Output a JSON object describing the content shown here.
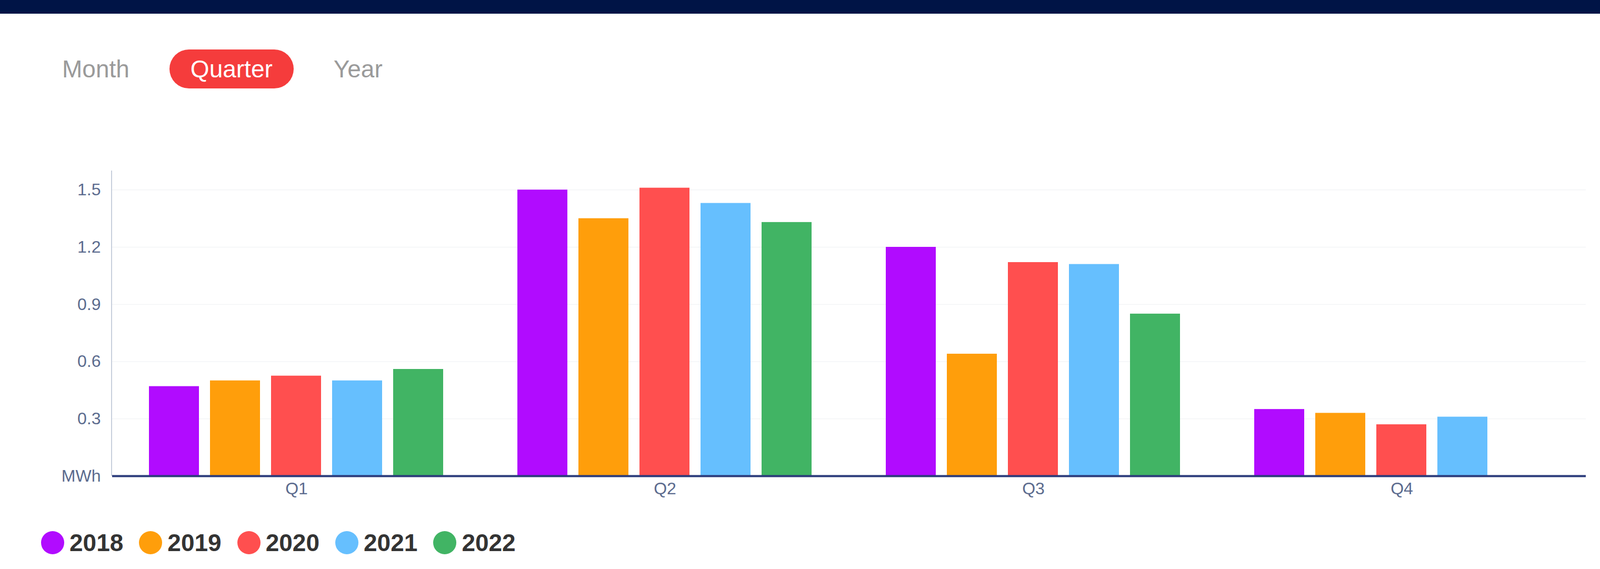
{
  "tabs": {
    "items": [
      "Month",
      "Quarter",
      "Year"
    ],
    "active": "Quarter"
  },
  "chart_data": {
    "type": "bar",
    "categories": [
      "Q1",
      "Q2",
      "Q3",
      "Q4"
    ],
    "series": [
      {
        "name": "2018",
        "color": "#b10bff",
        "values": [
          0.47,
          1.5,
          1.2,
          0.35
        ]
      },
      {
        "name": "2019",
        "color": "#ff9e0b",
        "values": [
          0.5,
          1.35,
          0.64,
          0.33
        ]
      },
      {
        "name": "2020",
        "color": "#ff4f4f",
        "values": [
          0.525,
          1.51,
          1.12,
          0.27
        ]
      },
      {
        "name": "2021",
        "color": "#66bffe",
        "values": [
          0.5,
          1.43,
          1.11,
          0.31
        ]
      },
      {
        "name": "2022",
        "color": "#41b464",
        "values": [
          0.56,
          1.33,
          0.85,
          null
        ]
      }
    ],
    "ylim": [
      0,
      1.6
    ],
    "yticks": [
      {
        "value": 0,
        "label": "MWh"
      },
      0.3,
      0.6,
      0.9,
      1.2,
      1.5
    ],
    "grid": true,
    "legend": "bottom-left"
  }
}
